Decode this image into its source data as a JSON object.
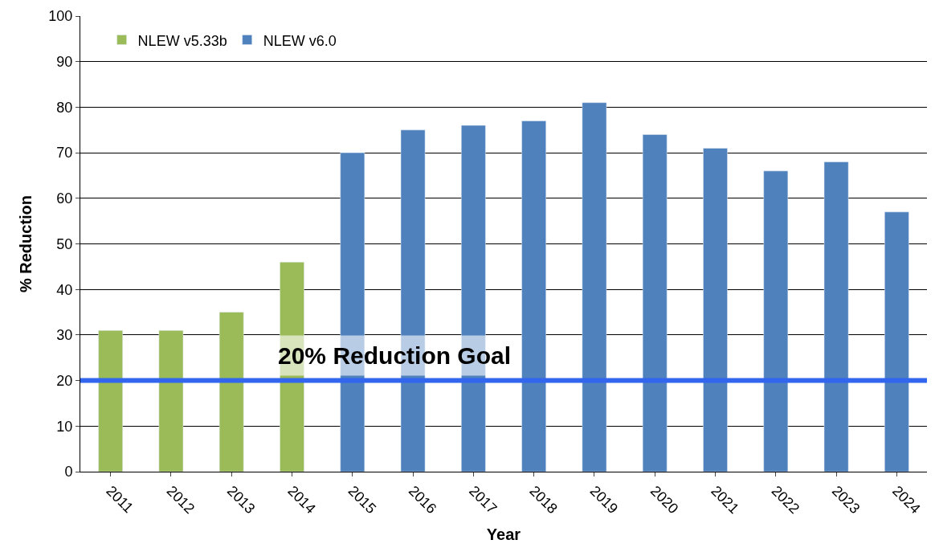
{
  "chart_data": {
    "type": "bar",
    "xlabel": "Year",
    "ylabel": "% Reduction",
    "categories": [
      "2011",
      "2012",
      "2013",
      "2014",
      "2015",
      "2016",
      "2017",
      "2018",
      "2019",
      "2020",
      "2021",
      "2022",
      "2023",
      "2024"
    ],
    "series": [
      {
        "name": "NLEW v5.33b",
        "color": "#9bbb59",
        "values": [
          31,
          31,
          35,
          46,
          null,
          null,
          null,
          null,
          null,
          null,
          null,
          null,
          null,
          null
        ]
      },
      {
        "name": "NLEW v6.0",
        "color": "#4f81bd",
        "values": [
          null,
          null,
          null,
          null,
          70,
          75,
          76,
          77,
          81,
          74,
          71,
          66,
          68,
          57
        ]
      }
    ],
    "ylim": [
      0,
      100
    ],
    "yticks": [
      0,
      10,
      20,
      30,
      40,
      50,
      60,
      70,
      80,
      90,
      100
    ],
    "grid": "y",
    "legend": "top left",
    "ref_lines": [
      {
        "axis": "y",
        "value": 20,
        "label": "20% Reduction Goal",
        "color": "#3366ee"
      }
    ]
  }
}
